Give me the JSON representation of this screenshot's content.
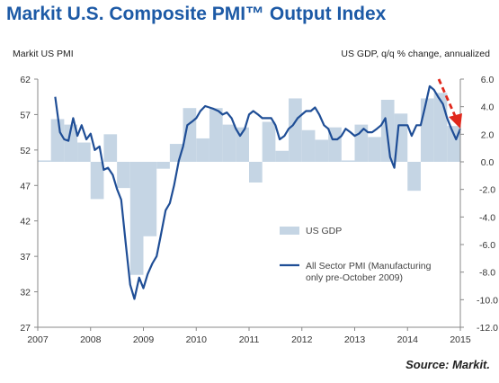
{
  "title": "Markit U.S. Composite PMI™ Output Index",
  "source": "Source: Markit.",
  "chart_data": {
    "type": "line",
    "left_axis_caption": "Markit US  PMI",
    "right_axis_caption": "US GDP, q/q % change, annualized",
    "x_ticks": [
      "2007",
      "2008",
      "2009",
      "2010",
      "2011",
      "2012",
      "2013",
      "2014",
      "2015"
    ],
    "x_range": [
      2007.0,
      2015.0
    ],
    "left_ticks": [
      "62",
      "57",
      "52",
      "47",
      "42",
      "37",
      "32",
      "27"
    ],
    "left_ylim": [
      27,
      62
    ],
    "right_ticks": [
      "6.0",
      "4.0",
      "2.0",
      "0.0",
      "-2.0",
      "-4.0",
      "-6.0",
      "-8.0",
      "-10.0",
      "-12.0"
    ],
    "right_ylim": [
      -12,
      6
    ],
    "grid": false,
    "legend_position": "bottom-right",
    "series": [
      {
        "name": "US GDP",
        "type": "bar",
        "axis": "right",
        "color": "#c5d5e4",
        "x": [
          2007.0,
          2007.25,
          2007.5,
          2007.75,
          2008.0,
          2008.25,
          2008.5,
          2008.75,
          2009.0,
          2009.25,
          2009.5,
          2009.75,
          2010.0,
          2010.25,
          2010.5,
          2010.75,
          2011.0,
          2011.25,
          2011.5,
          2011.75,
          2012.0,
          2012.25,
          2012.5,
          2012.75,
          2013.0,
          2013.25,
          2013.5,
          2013.75,
          2014.0,
          2014.25,
          2014.5,
          2014.75
        ],
        "values": [
          0.1,
          3.1,
          2.7,
          1.4,
          -2.7,
          2.0,
          -1.9,
          -8.2,
          -5.4,
          -0.5,
          1.3,
          3.9,
          1.7,
          3.9,
          2.7,
          2.5,
          -1.5,
          2.9,
          0.8,
          4.6,
          2.3,
          1.6,
          2.5,
          0.1,
          2.7,
          1.8,
          4.5,
          3.5,
          -2.1,
          4.6,
          5.0,
          2.6
        ]
      },
      {
        "name": "All Sector PMI (Manufacturing only pre-October 2009)",
        "type": "line",
        "axis": "left",
        "color": "#1f4e96",
        "x": [
          2007.33,
          2007.42,
          2007.5,
          2007.58,
          2007.67,
          2007.75,
          2007.83,
          2007.92,
          2008.0,
          2008.08,
          2008.17,
          2008.25,
          2008.33,
          2008.42,
          2008.5,
          2008.58,
          2008.67,
          2008.75,
          2008.83,
          2008.92,
          2009.0,
          2009.08,
          2009.17,
          2009.25,
          2009.33,
          2009.42,
          2009.5,
          2009.58,
          2009.67,
          2009.75,
          2009.83,
          2009.92,
          2010.0,
          2010.08,
          2010.17,
          2010.25,
          2010.33,
          2010.42,
          2010.5,
          2010.58,
          2010.67,
          2010.75,
          2010.83,
          2010.92,
          2011.0,
          2011.08,
          2011.17,
          2011.25,
          2011.33,
          2011.42,
          2011.5,
          2011.58,
          2011.67,
          2011.75,
          2011.83,
          2011.92,
          2012.0,
          2012.08,
          2012.17,
          2012.25,
          2012.33,
          2012.42,
          2012.5,
          2012.58,
          2012.67,
          2012.75,
          2012.83,
          2012.92,
          2013.0,
          2013.08,
          2013.17,
          2013.25,
          2013.33,
          2013.42,
          2013.5,
          2013.58,
          2013.67,
          2013.75,
          2013.83,
          2013.92,
          2014.0,
          2014.08,
          2014.17,
          2014.25,
          2014.33,
          2014.42,
          2014.5,
          2014.58,
          2014.67,
          2014.75,
          2014.83,
          2014.92,
          2015.0
        ],
        "values": [
          59.5,
          54.5,
          53.5,
          53.3,
          56.5,
          54.0,
          55.5,
          53.5,
          54.3,
          52.0,
          52.5,
          49.2,
          49.5,
          48.5,
          46.5,
          45.0,
          38.5,
          33.0,
          31.0,
          34.0,
          32.5,
          34.5,
          36.0,
          37.0,
          40.0,
          43.5,
          44.5,
          47.0,
          50.5,
          52.5,
          55.5,
          56.0,
          56.5,
          57.5,
          58.2,
          58.0,
          57.8,
          57.5,
          57.0,
          57.3,
          56.5,
          55.0,
          54.0,
          55.0,
          57.0,
          57.5,
          57.0,
          56.5,
          56.5,
          56.5,
          55.5,
          53.5,
          54.0,
          55.0,
          55.5,
          56.5,
          57.0,
          57.5,
          57.5,
          58.0,
          57.0,
          55.5,
          55.0,
          53.5,
          53.5,
          54.0,
          55.0,
          54.5,
          54.0,
          54.3,
          55.0,
          54.5,
          54.5,
          55.0,
          55.5,
          56.5,
          51.0,
          49.5,
          55.5,
          55.5,
          55.5,
          54.0,
          55.5,
          55.5,
          58.0,
          61.0,
          60.5,
          59.5,
          58.5,
          56.5,
          55.0,
          53.5,
          55.0
        ]
      }
    ],
    "annotation_arrow": {
      "color": "#e0281c",
      "style": "dashed",
      "direction": "down"
    }
  }
}
